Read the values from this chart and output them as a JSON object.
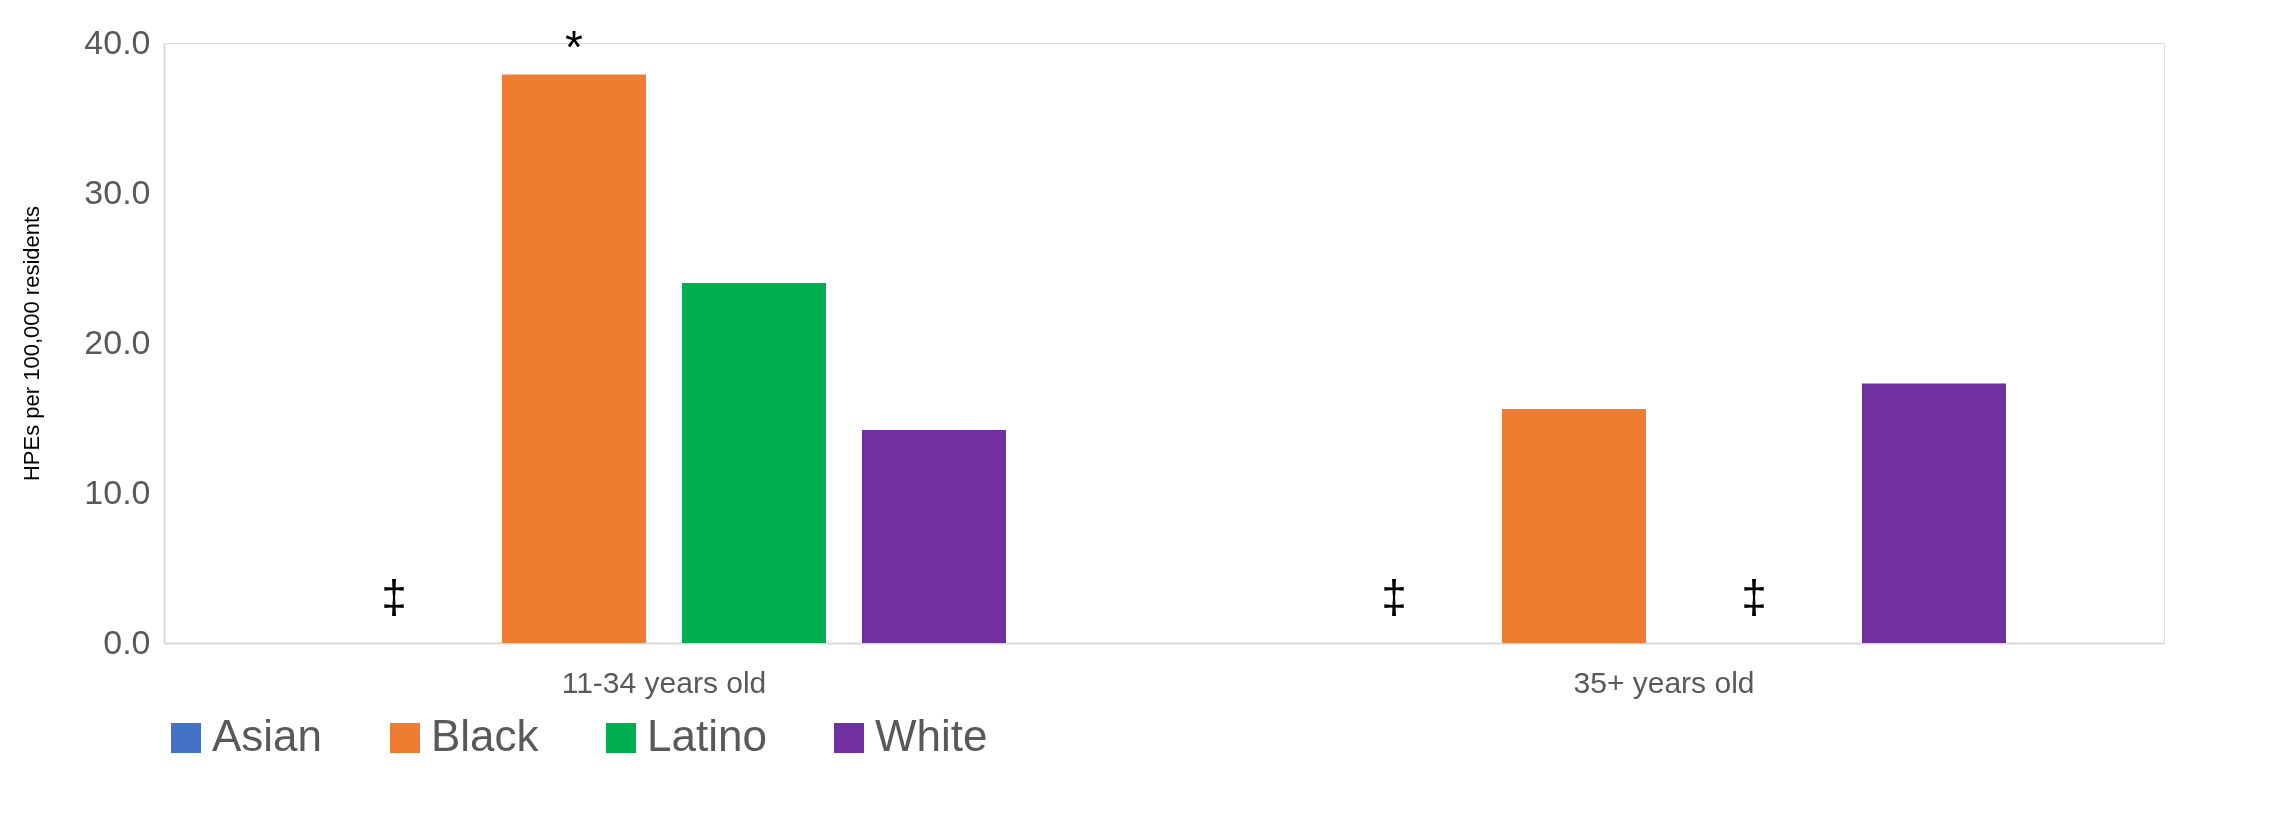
{
  "chart_data": {
    "type": "bar",
    "ylabel": "HPEs per 100,000 residents",
    "categories": [
      "11-34 years old",
      "35+ years old"
    ],
    "series": [
      {
        "name": "Asian",
        "color": "#4472c4",
        "values": [
          null,
          null
        ],
        "value_labels": [
          "‡",
          "‡"
        ]
      },
      {
        "name": "Black",
        "color": "#ed7d31",
        "values": [
          37.9,
          15.6
        ],
        "value_labels": [
          "*",
          null
        ]
      },
      {
        "name": "Latino",
        "color": "#00b050",
        "values": [
          24.0,
          null
        ],
        "value_labels": [
          null,
          "‡"
        ]
      },
      {
        "name": "White",
        "color": "#7030a0",
        "values": [
          14.2,
          17.3
        ]
      }
    ],
    "ylim": [
      0,
      40
    ],
    "yticks": [
      {
        "value": 0,
        "label": "0.0"
      },
      {
        "value": 10,
        "label": "10.0"
      },
      {
        "value": 20,
        "label": "20.0"
      },
      {
        "value": 30,
        "label": "30.0"
      },
      {
        "value": 40,
        "label": "40.0"
      }
    ],
    "grid": false,
    "legend": "bottom"
  }
}
